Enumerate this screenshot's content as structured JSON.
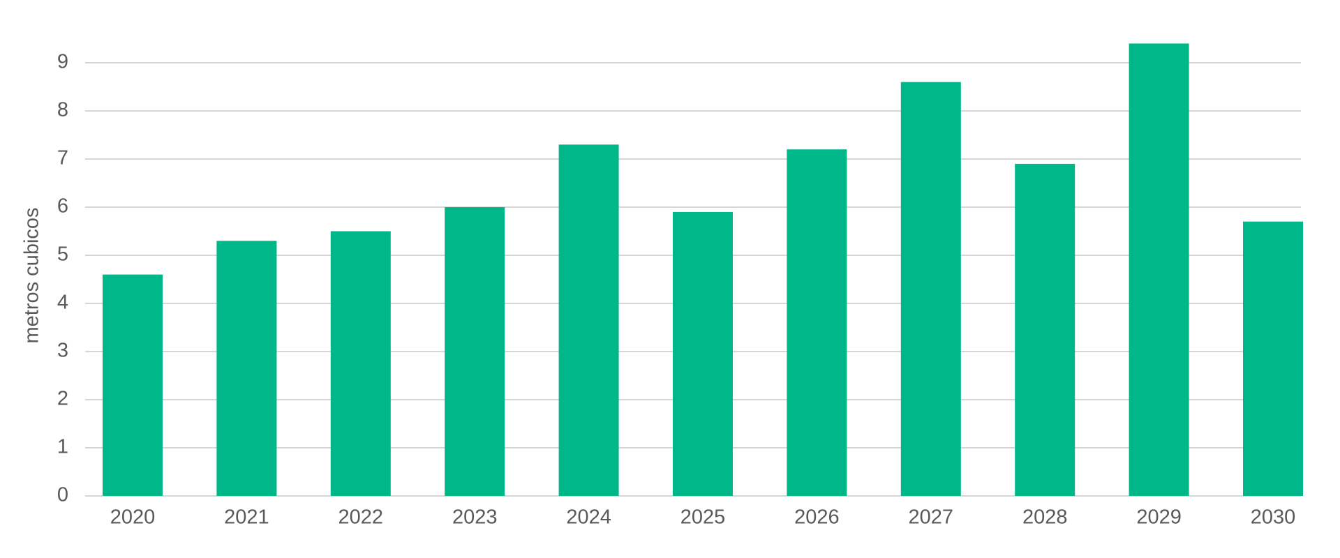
{
  "chart_data": {
    "type": "bar",
    "y_label": "metros cubicos",
    "categories": [
      "2020",
      "2021",
      "2022",
      "2023",
      "2024",
      "2025",
      "2026",
      "2027",
      "2028",
      "2029",
      "2030"
    ],
    "values": [
      4.6,
      5.3,
      5.5,
      6.0,
      7.3,
      5.9,
      7.2,
      8.6,
      6.9,
      9.4,
      5.7
    ],
    "color": "#00b78a",
    "ylim": [
      0,
      10
    ],
    "yticks": [
      0,
      1,
      2,
      3,
      4,
      5,
      6,
      7,
      8,
      9
    ],
    "grid": true
  }
}
